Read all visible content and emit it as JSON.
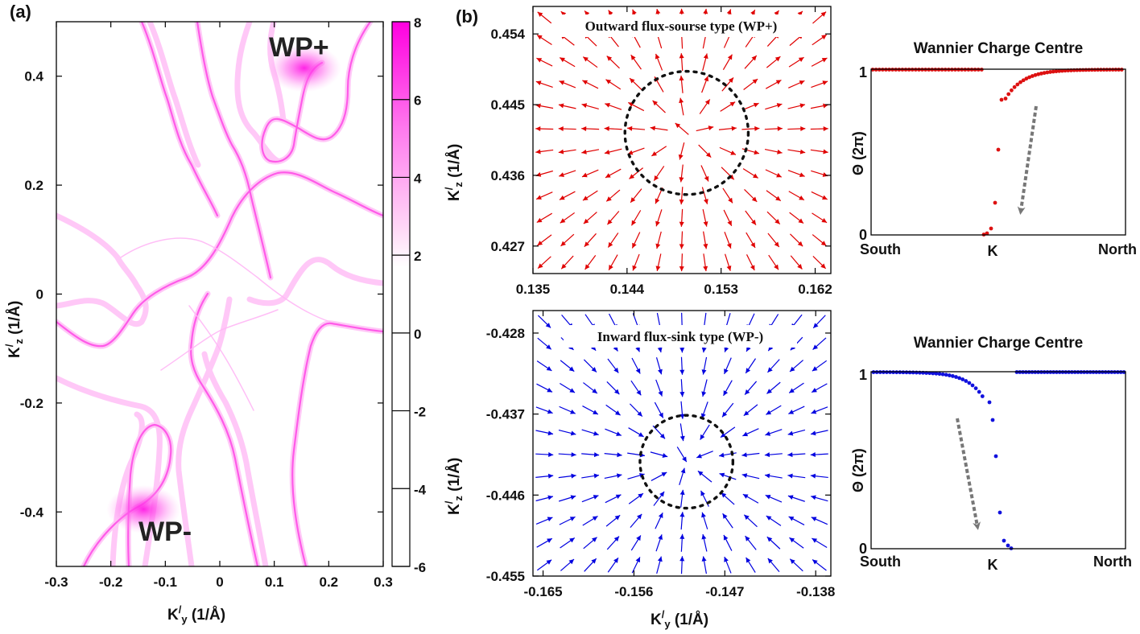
{
  "panel_labels": {
    "a": "(a)",
    "b": "(b)"
  },
  "chart_data": [
    {
      "id": "fermi_arc_map",
      "type": "heatmap",
      "xlabel": "K",
      "xlabel_sup": "/",
      "xlabel_sub": "y",
      "xlabel_unit": " (1/Å)",
      "ylabel": "K",
      "ylabel_sup": "/",
      "ylabel_sub": "z",
      "ylabel_unit": " (1/Å)",
      "xlim": [
        -0.3,
        0.3
      ],
      "ylim": [
        -0.5,
        0.5
      ],
      "xticks": [
        "-0.3",
        "-0.2",
        "-0.1",
        "0",
        "0.1",
        "0.2",
        "0.3"
      ],
      "yticks": [
        "0.4",
        "0.2",
        "0",
        "-0.2",
        "-0.4"
      ],
      "colorbar": {
        "ticks": [
          "8",
          "6",
          "4",
          "2",
          "0",
          "-2",
          "-4",
          "-6"
        ],
        "range": [
          -6,
          8
        ],
        "low_color": "#ffffff",
        "high_color": "#ff00e0"
      },
      "annotations": [
        {
          "text": "WP+",
          "x": 0.17,
          "y": 0.45
        },
        {
          "text": "WP-",
          "x": -0.15,
          "y": -0.43
        }
      ],
      "hotspots": [
        {
          "x": 0.155,
          "y": 0.415,
          "intensity": 8
        },
        {
          "x": -0.14,
          "y": -0.395,
          "intensity": 8
        }
      ]
    },
    {
      "id": "berry_flux_wp_plus",
      "type": "quiver",
      "title": "Outward flux-sourse type (WP+)",
      "xlim": [
        0.135,
        0.1635
      ],
      "ylim": [
        0.4235,
        0.4575
      ],
      "xticks": [
        "0.135",
        "0.144",
        "0.153",
        "0.162"
      ],
      "xtick_values": [
        0.135,
        0.144,
        0.153,
        0.162
      ],
      "yticks": [
        "0.454",
        "0.445",
        "0.436",
        "0.427"
      ],
      "ytick_values": [
        0.454,
        0.445,
        0.436,
        0.427
      ],
      "ylabel": "K",
      "ylabel_sup": "/",
      "ylabel_sub": "z",
      "ylabel_unit": " (1/Å)",
      "center": [
        0.1497,
        0.4414
      ],
      "circle_radius": 0.0059,
      "direction": "outward",
      "color": "#e00000"
    },
    {
      "id": "berry_flux_wp_minus",
      "type": "quiver",
      "title": "Inward flux-sink type (WP-)",
      "xlim": [
        -0.166,
        -0.1365
      ],
      "ylim": [
        -0.455,
        -0.4255
      ],
      "xticks": [
        "-0.165",
        "-0.156",
        "-0.147",
        "-0.138"
      ],
      "xtick_values": [
        -0.165,
        -0.156,
        -0.147,
        -0.138
      ],
      "yticks": [
        "-0.428",
        "-0.437",
        "-0.446",
        "-0.455"
      ],
      "ytick_values": [
        -0.428,
        -0.437,
        -0.446,
        -0.455
      ],
      "xlabel": "K",
      "xlabel_sup": "/",
      "xlabel_sub": "y",
      "xlabel_unit": " (1/Å)",
      "ylabel": "K",
      "ylabel_sup": "/",
      "ylabel_sub": "z",
      "ylabel_unit": " (1/Å)",
      "center": [
        -0.1508,
        -0.4423
      ],
      "circle_radius": 0.0046,
      "direction": "inward",
      "color": "#0000e0"
    },
    {
      "id": "wcc_plus",
      "type": "scatter",
      "title": "Wannier Charge Centre",
      "ylabel": "Θ (2π)",
      "yticks": [
        "1",
        "0"
      ],
      "xticks": [
        "South",
        "K",
        "North"
      ],
      "color": "#dd1111",
      "arrow": "down"
    },
    {
      "id": "wcc_minus",
      "type": "scatter",
      "title": "Wannier Charge Centre",
      "ylabel": "Θ (2π)",
      "yticks": [
        "1",
        "0"
      ],
      "xticks": [
        "South",
        "K",
        "North"
      ],
      "color": "#1111dd",
      "arrow": "down"
    }
  ]
}
